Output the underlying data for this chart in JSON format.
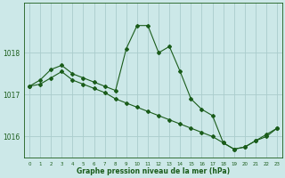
{
  "xlabel_label": "Graphe pression niveau de la mer (hPa)",
  "bg_color": "#cce8e8",
  "grid_color": "#aacccc",
  "line_color": "#1a5c1a",
  "hours": [
    0,
    1,
    2,
    3,
    4,
    5,
    6,
    7,
    8,
    9,
    10,
    11,
    12,
    13,
    14,
    15,
    16,
    17,
    18,
    19,
    20,
    21,
    22,
    23
  ],
  "series1": [
    1017.2,
    1017.35,
    1017.6,
    1017.7,
    1017.5,
    1017.4,
    1017.3,
    1017.2,
    1017.1,
    1018.1,
    1018.65,
    1018.65,
    1018.0,
    1018.15,
    1017.55,
    1016.9,
    1016.65,
    1016.5,
    1015.85,
    1015.7,
    1015.75,
    1015.9,
    1016.0,
    1016.2
  ],
  "series2": [
    1017.2,
    1017.25,
    1017.4,
    1017.55,
    1017.35,
    1017.25,
    1017.15,
    1017.05,
    1016.9,
    1016.8,
    1016.7,
    1016.6,
    1016.5,
    1016.4,
    1016.3,
    1016.2,
    1016.1,
    1016.0,
    1015.85,
    1015.7,
    1015.75,
    1015.9,
    1016.05,
    1016.2
  ],
  "ylim": [
    1015.5,
    1019.2
  ],
  "yticks": [
    1016,
    1017,
    1018
  ],
  "xticks": [
    0,
    1,
    2,
    3,
    4,
    5,
    6,
    7,
    8,
    9,
    10,
    11,
    12,
    13,
    14,
    15,
    16,
    17,
    18,
    19,
    20,
    21,
    22,
    23
  ],
  "marker": "D",
  "marker_size": 2.0,
  "line_width": 0.8
}
